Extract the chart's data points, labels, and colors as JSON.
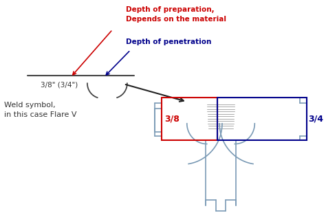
{
  "background_color": "#ffffff",
  "annotation_red_text": "Depth of preparation,\nDepends on the material",
  "annotation_blue_text": "Depth of penetration",
  "label_38": "3/8\" (3/4\")",
  "label_weld": "Weld symbol,\nin this case Flare V",
  "label_38_red": "3/8",
  "label_34_blue": "3/4",
  "red_color": "#cc0000",
  "blue_color": "#00008b",
  "shape_color": "#7a9ab5",
  "dark_color": "#333333",
  "hatch_color": "#888888"
}
